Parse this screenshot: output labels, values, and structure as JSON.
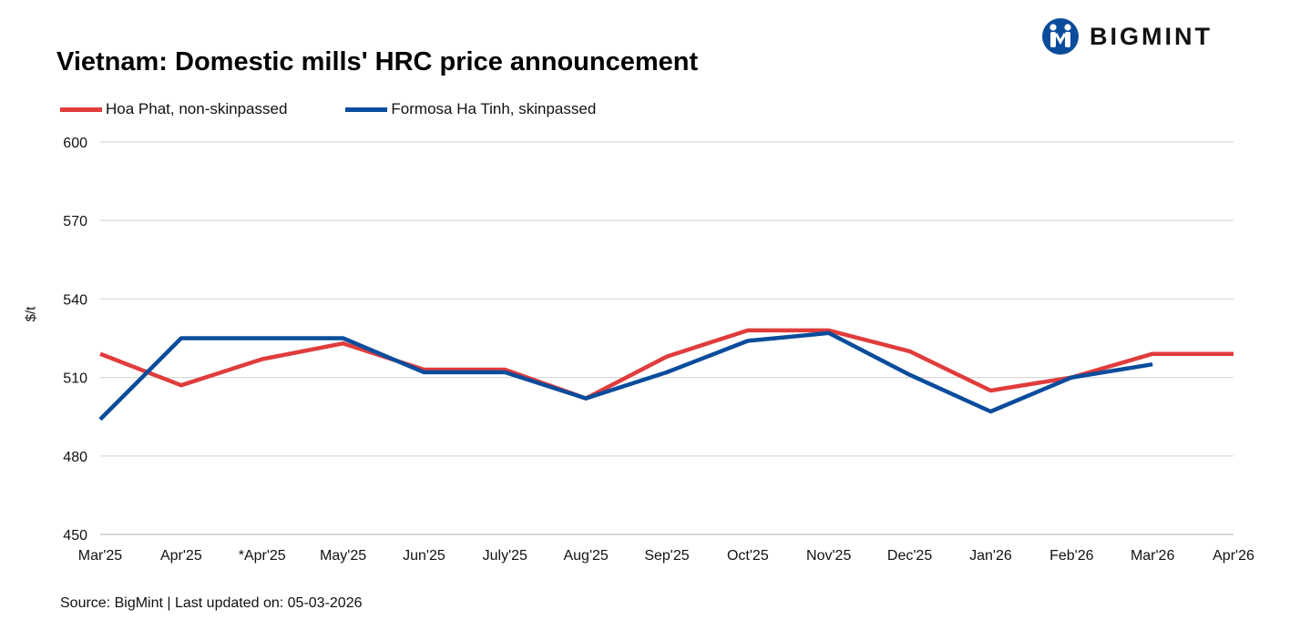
{
  "header": {
    "title": "Vietnam: Domestic mills' HRC price announcement",
    "logo_text": "BIGMINT",
    "brand_color": "#0a4c9c"
  },
  "footer": {
    "source": "Source: BigMint | Last updated on:  05-03-2026"
  },
  "chart_data": {
    "type": "line",
    "title": "Vietnam: Domestic mills' HRC price announcement",
    "xlabel": "",
    "ylabel": "$/t",
    "ylim": [
      450,
      600
    ],
    "yticks": [
      450,
      480,
      510,
      540,
      570,
      600
    ],
    "grid": true,
    "legend_position": "top-left",
    "categories": [
      "Mar'25",
      "Apr'25",
      "*Apr'25",
      "May'25",
      "Jun'25",
      "July'25",
      "Aug'25",
      "Sep'25",
      "Oct'25",
      "Nov'25",
      "Dec'25",
      "Jan'26",
      "Feb'26",
      "Mar'26",
      "Apr'26"
    ],
    "series": [
      {
        "name": "Hoa Phat, non-skinpassed",
        "color": "#e03c3c",
        "values": [
          519,
          507,
          517,
          523,
          513,
          513,
          502,
          518,
          528,
          528,
          520,
          505,
          510,
          519,
          519
        ]
      },
      {
        "name": "Formosa Ha Tinh, skinpassed",
        "color": "#0a4c9c",
        "values": [
          494,
          525,
          525,
          525,
          512,
          512,
          502,
          512,
          524,
          527,
          511,
          497,
          510,
          515,
          null
        ]
      }
    ]
  }
}
